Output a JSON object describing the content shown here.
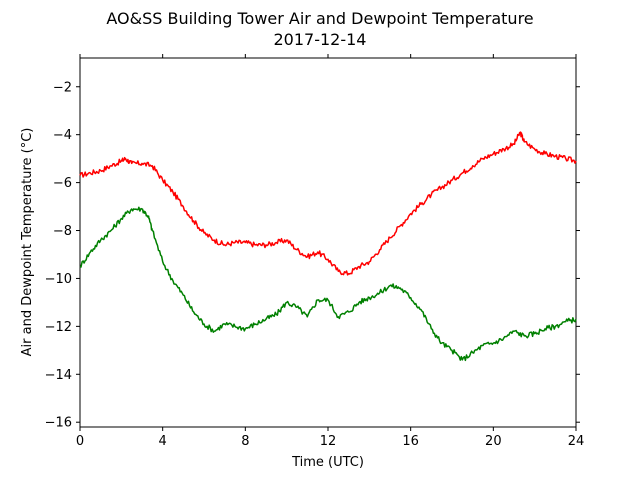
{
  "chart_data": {
    "type": "line",
    "title": "AO&SS Building Tower Air and Dewpoint Temperature",
    "subtitle": "2017-12-14",
    "xlabel": "Time (UTC)",
    "ylabel": "Air and Dewpoint Temperature (°C)",
    "xlim": [
      0,
      24
    ],
    "ylim": [
      -16.2,
      -0.8
    ],
    "xticks": [
      0,
      4,
      8,
      12,
      16,
      20,
      24
    ],
    "yticks": [
      -16,
      -14,
      -12,
      -10,
      -8,
      -6,
      -4,
      -2
    ],
    "grid": false,
    "legend": "none",
    "series": [
      {
        "color": "#ff0000",
        "x": [
          0,
          0.5,
          1.0,
          1.5,
          2.0,
          2.2,
          2.5,
          3.0,
          3.5,
          4.0,
          4.5,
          5.0,
          5.5,
          6.0,
          6.5,
          7.0,
          7.5,
          8.0,
          8.5,
          9.0,
          9.5,
          10.0,
          10.5,
          11.0,
          11.5,
          12.0,
          12.5,
          13.0,
          13.5,
          14.0,
          14.5,
          15.0,
          15.5,
          16.0,
          16.5,
          17.0,
          17.5,
          18.0,
          18.5,
          19.0,
          19.5,
          20.0,
          20.5,
          21.0,
          21.3,
          21.5,
          22.0,
          22.5,
          23.0,
          23.5,
          24.0
        ],
        "y": [
          -5.7,
          -5.6,
          -5.5,
          -5.3,
          -5.1,
          -5.0,
          -5.2,
          -5.2,
          -5.3,
          -5.9,
          -6.4,
          -7.0,
          -7.6,
          -8.1,
          -8.4,
          -8.6,
          -8.5,
          -8.5,
          -8.6,
          -8.6,
          -8.5,
          -8.4,
          -8.8,
          -9.1,
          -8.9,
          -9.2,
          -9.7,
          -9.8,
          -9.5,
          -9.3,
          -8.8,
          -8.3,
          -7.8,
          -7.3,
          -6.9,
          -6.5,
          -6.2,
          -5.9,
          -5.6,
          -5.3,
          -5.0,
          -4.8,
          -4.6,
          -4.4,
          -3.9,
          -4.3,
          -4.6,
          -4.8,
          -4.9,
          -5.0,
          -5.1
        ]
      },
      {
        "color": "#008000",
        "x": [
          0,
          0.5,
          1.0,
          1.5,
          2.0,
          2.5,
          3.0,
          3.3,
          3.5,
          4.0,
          4.5,
          5.0,
          5.5,
          6.0,
          6.5,
          7.0,
          7.5,
          8.0,
          8.5,
          9.0,
          9.5,
          10.0,
          10.5,
          11.0,
          11.5,
          12.0,
          12.5,
          13.0,
          13.5,
          14.0,
          14.5,
          15.0,
          15.5,
          16.0,
          16.5,
          17.0,
          17.5,
          18.0,
          18.5,
          19.0,
          19.5,
          20.0,
          20.5,
          21.0,
          21.5,
          22.0,
          22.5,
          23.0,
          23.5,
          24.0
        ],
        "y": [
          -9.5,
          -8.9,
          -8.4,
          -8.0,
          -7.5,
          -7.1,
          -7.1,
          -7.4,
          -8.0,
          -9.3,
          -10.1,
          -10.7,
          -11.4,
          -11.9,
          -12.2,
          -11.9,
          -12.0,
          -12.1,
          -11.9,
          -11.7,
          -11.5,
          -11.0,
          -11.2,
          -11.6,
          -10.9,
          -10.9,
          -11.6,
          -11.4,
          -11.0,
          -10.8,
          -10.6,
          -10.3,
          -10.4,
          -10.8,
          -11.3,
          -12.1,
          -12.7,
          -13.0,
          -13.4,
          -13.1,
          -12.8,
          -12.7,
          -12.5,
          -12.2,
          -12.4,
          -12.3,
          -12.1,
          -12.0,
          -11.8,
          -11.7
        ]
      }
    ]
  }
}
